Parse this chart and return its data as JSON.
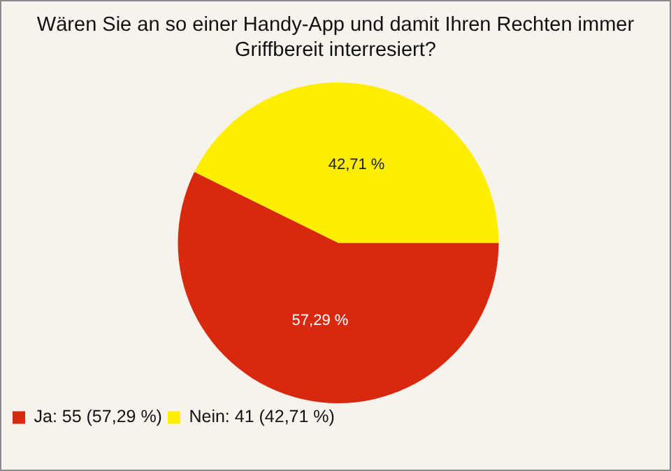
{
  "chart_data": {
    "type": "pie",
    "title": "Wären Sie an so einer Handy-App und damit Ihren Rechten immer Griffbereit interresiert?",
    "categories": [
      "Ja: 55 (57,29 %)",
      "Nein: 41 (42,71 %)"
    ],
    "values": [
      57.29,
      42.71
    ],
    "colors": [
      "#d8280e",
      "#ffee00"
    ],
    "value_labels": [
      "57,29 %",
      "42,71 %"
    ],
    "legend": "bottom left"
  }
}
